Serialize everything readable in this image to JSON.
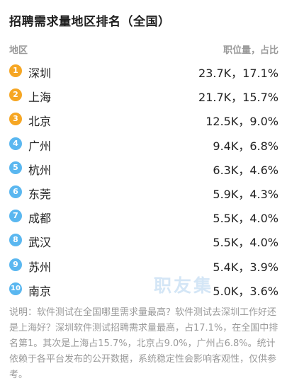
{
  "title": "招聘需求量地区排名（全国）",
  "header": {
    "left": "地区",
    "right": "职位量，占比"
  },
  "rows": [
    {
      "rank": "1",
      "city": "深圳",
      "value": "23.7K，17.1%"
    },
    {
      "rank": "2",
      "city": "上海",
      "value": "21.7K，15.7%"
    },
    {
      "rank": "3",
      "city": "北京",
      "value": "12.5K，9.0%"
    },
    {
      "rank": "4",
      "city": "广州",
      "value": "9.4K，6.8%"
    },
    {
      "rank": "5",
      "city": "杭州",
      "value": "6.3K，4.6%"
    },
    {
      "rank": "6",
      "city": "东莞",
      "value": "5.9K，4.3%"
    },
    {
      "rank": "7",
      "city": "成都",
      "value": "5.5K，4.0%"
    },
    {
      "rank": "8",
      "city": "武汉",
      "value": "5.5K，4.0%"
    },
    {
      "rank": "9",
      "city": "苏州",
      "value": "5.4K，3.9%"
    },
    {
      "rank": "10",
      "city": "南京",
      "value": "5.0K，3.6%"
    }
  ],
  "watermark": "职友集",
  "note": "说明：软件测试在全国哪里需求量最高？软件测试去深圳工作好还是上海好？深圳软件测试招聘需求量最高，占17.1%，在全国中排名第1。其次是上海占15.7%，北京占9.0%，广州占6.8%。统计依赖于各平台发布的公开数据，系统稳定性会影响客观性，仅供参考。",
  "colors": {
    "badge_top3": "#f6a623",
    "badge_rest": "#5ab7f0"
  }
}
